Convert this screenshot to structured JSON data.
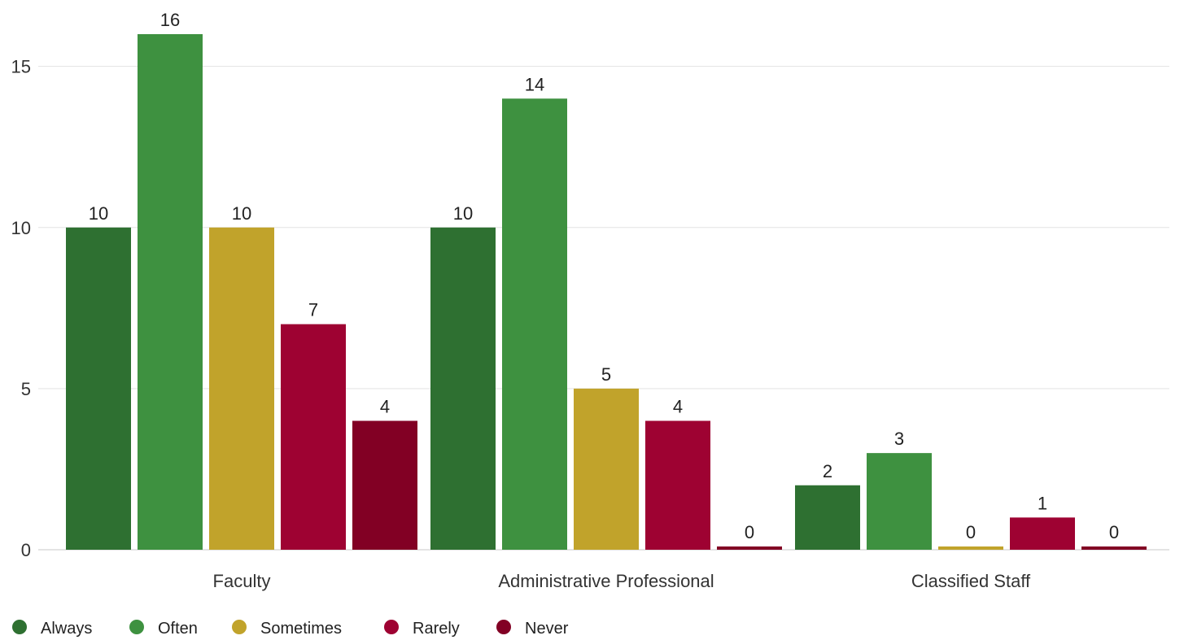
{
  "chart_data": {
    "type": "bar",
    "title": "",
    "xlabel": "",
    "ylabel": "",
    "categories": [
      "Faculty",
      "Administrative Professional",
      "Classified Staff"
    ],
    "yticks": [
      0,
      5,
      10,
      15
    ],
    "ylim": [
      0,
      16.5
    ],
    "grid": true,
    "legend": "bottom-left",
    "series": [
      {
        "name": "Always",
        "color": "#2e7031",
        "values": [
          10,
          10,
          2
        ]
      },
      {
        "name": "Often",
        "color": "#3e9140",
        "values": [
          16,
          14,
          3
        ]
      },
      {
        "name": "Sometimes",
        "color": "#c1a32b",
        "values": [
          10,
          5,
          0
        ]
      },
      {
        "name": "Rarely",
        "color": "#9e0232",
        "values": [
          7,
          4,
          1
        ]
      },
      {
        "name": "Never",
        "color": "#820024",
        "values": [
          4,
          0,
          0
        ]
      }
    ]
  }
}
